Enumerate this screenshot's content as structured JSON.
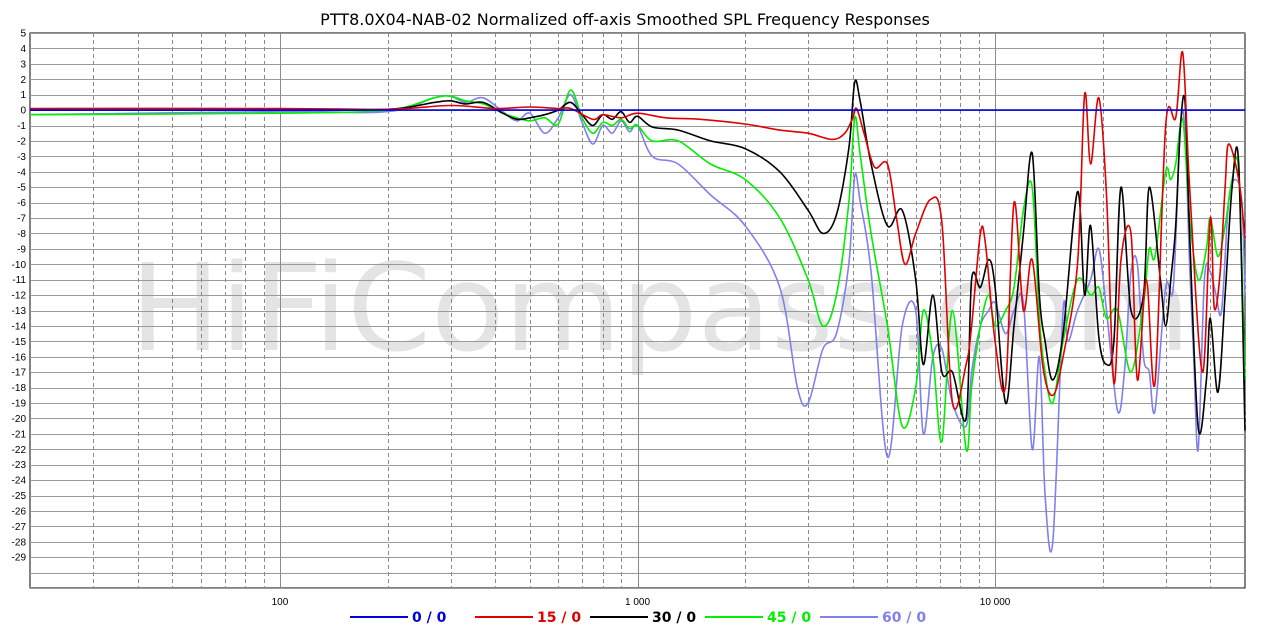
{
  "chart_data": {
    "type": "line",
    "title": "PTT8.0X04-NAB-02 Normalized off-axis Smoothed SPL Frequency Responses",
    "watermark": "HiFiCompass.com",
    "x_scale": "log",
    "xlim": [
      20,
      50000
    ],
    "ylim": [
      -31,
      5
    ],
    "x_tick_labels": [
      {
        "value": 100,
        "label": "100"
      },
      {
        "value": 1000,
        "label": "1 000"
      },
      {
        "value": 10000,
        "label": "10 000"
      }
    ],
    "y_ticks": [
      5,
      4,
      3,
      2,
      1,
      0,
      -1,
      -2,
      -3,
      -4,
      -5,
      -6,
      -7,
      -8,
      -9,
      -10,
      -11,
      -12,
      -13,
      -14,
      -15,
      -16,
      -17,
      -18,
      -19,
      -20,
      -21,
      -22,
      -23,
      -24,
      -25,
      -26,
      -27,
      -28,
      -29
    ],
    "grid": true,
    "legend_position": "bottom",
    "series": [
      {
        "name": "0 / 0",
        "color": "#0000dd",
        "points": [
          [
            20,
            0
          ],
          [
            50000,
            0
          ]
        ]
      },
      {
        "name": "15 / 0",
        "color": "#e00000",
        "points": [
          [
            20,
            0.1
          ],
          [
            100,
            0.1
          ],
          [
            200,
            0.05
          ],
          [
            300,
            0.3
          ],
          [
            400,
            0.1
          ],
          [
            500,
            0.2
          ],
          [
            600,
            0.1
          ],
          [
            650,
            0.1
          ],
          [
            750,
            -0.6
          ],
          [
            800,
            -0.3
          ],
          [
            900,
            -0.5
          ],
          [
            1000,
            -0.2
          ],
          [
            1200,
            -0.5
          ],
          [
            1500,
            -0.6
          ],
          [
            2000,
            -0.9
          ],
          [
            2500,
            -1.3
          ],
          [
            3000,
            -1.5
          ],
          [
            3500,
            -1.9
          ],
          [
            3800,
            -1.5
          ],
          [
            4000,
            -0.5
          ],
          [
            4100,
            0.1
          ],
          [
            4300,
            -1.5
          ],
          [
            4600,
            -3.7
          ],
          [
            5000,
            -3.5
          ],
          [
            5300,
            -7.0
          ],
          [
            5600,
            -10.0
          ],
          [
            6000,
            -8.0
          ],
          [
            6600,
            -5.8
          ],
          [
            7100,
            -7.3
          ],
          [
            7600,
            -19.0
          ],
          [
            8300,
            -16.5
          ],
          [
            8600,
            -14.0
          ],
          [
            9100,
            -8.0
          ],
          [
            9400,
            -8.7
          ],
          [
            10000,
            -15.0
          ],
          [
            10700,
            -17.9
          ],
          [
            11300,
            -6.0
          ],
          [
            12000,
            -13.0
          ],
          [
            12700,
            -9.7
          ],
          [
            13600,
            -16.6
          ],
          [
            14500,
            -18.5
          ],
          [
            15500,
            -16.0
          ],
          [
            17000,
            -10.0
          ],
          [
            17800,
            1.0
          ],
          [
            18500,
            -3.5
          ],
          [
            19500,
            0.8
          ],
          [
            20500,
            -5.5
          ],
          [
            21500,
            -17.7
          ],
          [
            22500,
            -9.7
          ],
          [
            24000,
            -8.0
          ],
          [
            25000,
            -17.5
          ],
          [
            26500,
            -11.0
          ],
          [
            28000,
            -17.7
          ],
          [
            30000,
            -1.0
          ],
          [
            32000,
            -0.5
          ],
          [
            33500,
            3.7
          ],
          [
            35000,
            -5.0
          ],
          [
            38000,
            -17.0
          ],
          [
            40000,
            -7.0
          ],
          [
            41000,
            -12.8
          ],
          [
            42500,
            -10.8
          ],
          [
            44000,
            -5.0
          ],
          [
            45000,
            -2.2
          ],
          [
            48000,
            -4.5
          ],
          [
            50000,
            -8.3
          ]
        ]
      },
      {
        "name": "30 / 0",
        "color": "#000000",
        "points": [
          [
            20,
            0.0
          ],
          [
            100,
            0.0
          ],
          [
            200,
            0.05
          ],
          [
            270,
            0.5
          ],
          [
            300,
            0.6
          ],
          [
            330,
            0.4
          ],
          [
            370,
            0.5
          ],
          [
            420,
            -0.2
          ],
          [
            460,
            -0.6
          ],
          [
            500,
            -0.5
          ],
          [
            550,
            -0.3
          ],
          [
            600,
            0.0
          ],
          [
            650,
            0.5
          ],
          [
            700,
            -0.3
          ],
          [
            750,
            -1.0
          ],
          [
            800,
            -0.3
          ],
          [
            850,
            -0.6
          ],
          [
            900,
            -0.1
          ],
          [
            950,
            -0.8
          ],
          [
            1000,
            -0.4
          ],
          [
            1100,
            -1.1
          ],
          [
            1300,
            -1.3
          ],
          [
            1600,
            -2.0
          ],
          [
            2000,
            -2.5
          ],
          [
            2500,
            -4.0
          ],
          [
            3000,
            -6.5
          ],
          [
            3300,
            -8.0
          ],
          [
            3600,
            -6.8
          ],
          [
            3900,
            -2.5
          ],
          [
            4050,
            1.8
          ],
          [
            4200,
            0.5
          ],
          [
            4500,
            -3.5
          ],
          [
            5000,
            -7.5
          ],
          [
            5500,
            -6.5
          ],
          [
            6000,
            -11.0
          ],
          [
            6300,
            -16.5
          ],
          [
            6700,
            -12.0
          ],
          [
            7100,
            -17.0
          ],
          [
            7600,
            -17.0
          ],
          [
            8300,
            -20.0
          ],
          [
            8600,
            -11.0
          ],
          [
            9100,
            -11.5
          ],
          [
            9600,
            -9.7
          ],
          [
            10000,
            -11.5
          ],
          [
            10700,
            -19.0
          ],
          [
            11300,
            -14.0
          ],
          [
            12000,
            -8.0
          ],
          [
            12700,
            -2.8
          ],
          [
            13300,
            -12.0
          ],
          [
            13800,
            -15.0
          ],
          [
            14500,
            -17.5
          ],
          [
            15500,
            -14.5
          ],
          [
            17000,
            -5.3
          ],
          [
            17800,
            -12.0
          ],
          [
            18500,
            -7.5
          ],
          [
            19500,
            -14.7
          ],
          [
            20500,
            -16.5
          ],
          [
            21500,
            -15.0
          ],
          [
            22500,
            -5.0
          ],
          [
            24000,
            -13.0
          ],
          [
            26000,
            -12.0
          ],
          [
            27000,
            -5.0
          ],
          [
            29000,
            -11.0
          ],
          [
            30000,
            -14.0
          ],
          [
            31000,
            -11.0
          ],
          [
            32000,
            -7.5
          ],
          [
            33000,
            -1.0
          ],
          [
            34000,
            0.5
          ],
          [
            35000,
            -8.0
          ],
          [
            37000,
            -20.6
          ],
          [
            39000,
            -17.5
          ],
          [
            40000,
            -13.5
          ],
          [
            42000,
            -18.3
          ],
          [
            44000,
            -12.0
          ],
          [
            46000,
            -5.0
          ],
          [
            48000,
            -3.5
          ],
          [
            50000,
            -20.8
          ]
        ]
      },
      {
        "name": "45 / 0",
        "color": "#00ee00",
        "points": [
          [
            20,
            -0.3
          ],
          [
            100,
            -0.2
          ],
          [
            200,
            0.0
          ],
          [
            270,
            0.8
          ],
          [
            300,
            0.9
          ],
          [
            330,
            0.6
          ],
          [
            370,
            0.4
          ],
          [
            420,
            -0.2
          ],
          [
            460,
            -0.5
          ],
          [
            500,
            -0.7
          ],
          [
            550,
            -0.5
          ],
          [
            600,
            -0.9
          ],
          [
            650,
            1.3
          ],
          [
            700,
            -0.5
          ],
          [
            750,
            -1.5
          ],
          [
            800,
            -0.8
          ],
          [
            850,
            -1.0
          ],
          [
            900,
            -0.6
          ],
          [
            950,
            -1.2
          ],
          [
            1000,
            -1.0
          ],
          [
            1100,
            -2.0
          ],
          [
            1300,
            -2.0
          ],
          [
            1600,
            -3.5
          ],
          [
            2000,
            -4.5
          ],
          [
            2500,
            -7.0
          ],
          [
            3000,
            -11.0
          ],
          [
            3300,
            -14.0
          ],
          [
            3600,
            -12.0
          ],
          [
            3900,
            -6.0
          ],
          [
            4050,
            -0.5
          ],
          [
            4200,
            -3.0
          ],
          [
            4500,
            -8.0
          ],
          [
            5000,
            -14.0
          ],
          [
            5500,
            -20.5
          ],
          [
            6000,
            -18.0
          ],
          [
            6300,
            -13.0
          ],
          [
            6700,
            -16.0
          ],
          [
            7100,
            -21.5
          ],
          [
            7600,
            -13.0
          ],
          [
            8300,
            -22.0
          ],
          [
            8600,
            -18.0
          ],
          [
            9100,
            -14.0
          ],
          [
            9600,
            -12.0
          ],
          [
            10000,
            -14.0
          ],
          [
            10700,
            -13.0
          ],
          [
            11300,
            -11.5
          ],
          [
            12000,
            -6.5
          ],
          [
            12700,
            -5.0
          ],
          [
            13300,
            -13.5
          ],
          [
            13800,
            -17.0
          ],
          [
            14500,
            -19.0
          ],
          [
            15500,
            -15.0
          ],
          [
            17000,
            -11.0
          ],
          [
            18500,
            -12.0
          ],
          [
            19500,
            -11.5
          ],
          [
            20500,
            -13.5
          ],
          [
            22000,
            -13.0
          ],
          [
            24000,
            -17.0
          ],
          [
            26000,
            -12.5
          ],
          [
            27000,
            -9.0
          ],
          [
            28000,
            -9.5
          ],
          [
            30000,
            -4.0
          ],
          [
            31000,
            -4.5
          ],
          [
            32000,
            -3.5
          ],
          [
            33500,
            -0.6
          ],
          [
            35000,
            -7.0
          ],
          [
            37000,
            -11.0
          ],
          [
            39000,
            -9.0
          ],
          [
            40000,
            -7.0
          ],
          [
            42000,
            -9.5
          ],
          [
            44000,
            -7.5
          ],
          [
            46000,
            -4.5
          ],
          [
            48000,
            -4.0
          ],
          [
            50000,
            -17.5
          ]
        ]
      },
      {
        "name": "60 / 0",
        "color": "#8080ee",
        "points": [
          [
            20,
            -0.3
          ],
          [
            100,
            -0.1
          ],
          [
            200,
            -0.1
          ],
          [
            270,
            0.8
          ],
          [
            300,
            0.9
          ],
          [
            330,
            0.5
          ],
          [
            370,
            0.8
          ],
          [
            420,
            -0.1
          ],
          [
            460,
            -0.7
          ],
          [
            500,
            -0.2
          ],
          [
            550,
            -1.5
          ],
          [
            600,
            -0.5
          ],
          [
            650,
            1.0
          ],
          [
            700,
            -0.8
          ],
          [
            750,
            -2.2
          ],
          [
            800,
            -1.0
          ],
          [
            850,
            -1.5
          ],
          [
            900,
            -0.7
          ],
          [
            950,
            -1.4
          ],
          [
            1000,
            -1.0
          ],
          [
            1100,
            -3.0
          ],
          [
            1300,
            -3.5
          ],
          [
            1600,
            -5.5
          ],
          [
            2000,
            -7.5
          ],
          [
            2500,
            -11.5
          ],
          [
            2800,
            -18.0
          ],
          [
            3000,
            -19.0
          ],
          [
            3300,
            -15.5
          ],
          [
            3600,
            -14.5
          ],
          [
            3900,
            -10.0
          ],
          [
            4050,
            -4.3
          ],
          [
            4200,
            -6.0
          ],
          [
            4500,
            -10.5
          ],
          [
            5000,
            -22.5
          ],
          [
            5500,
            -14.0
          ],
          [
            6000,
            -13.0
          ],
          [
            6300,
            -21.0
          ],
          [
            6700,
            -16.0
          ],
          [
            7100,
            -15.5
          ],
          [
            7600,
            -19.0
          ],
          [
            8300,
            -20.5
          ],
          [
            8600,
            -17.0
          ],
          [
            9100,
            -14.0
          ],
          [
            9600,
            -13.0
          ],
          [
            10000,
            -12.5
          ],
          [
            10700,
            -14.5
          ],
          [
            11300,
            -13.0
          ],
          [
            12000,
            -12.5
          ],
          [
            12700,
            -22.0
          ],
          [
            13300,
            -16.0
          ],
          [
            13800,
            -25.0
          ],
          [
            14500,
            -28.0
          ],
          [
            15500,
            -13.0
          ],
          [
            16000,
            -15.0
          ],
          [
            17000,
            -13.0
          ],
          [
            18500,
            -11.0
          ],
          [
            19500,
            -9.0
          ],
          [
            20500,
            -13.0
          ],
          [
            22000,
            -19.5
          ],
          [
            23000,
            -17.0
          ],
          [
            24000,
            -10.5
          ],
          [
            25000,
            -10.0
          ],
          [
            26000,
            -16.0
          ],
          [
            27000,
            -17.0
          ],
          [
            28000,
            -19.5
          ],
          [
            30000,
            -11.5
          ],
          [
            31500,
            -11.5
          ],
          [
            33000,
            -1.0
          ],
          [
            34000,
            -1.5
          ],
          [
            35000,
            -10.0
          ],
          [
            36000,
            -16.5
          ],
          [
            37000,
            -22.0
          ],
          [
            38500,
            -11.0
          ],
          [
            40000,
            -10.5
          ],
          [
            41500,
            -12.0
          ],
          [
            43000,
            -13.0
          ],
          [
            45000,
            -6.0
          ],
          [
            47000,
            -4.5
          ],
          [
            49000,
            -6.0
          ],
          [
            50000,
            -12.0
          ]
        ]
      }
    ]
  }
}
